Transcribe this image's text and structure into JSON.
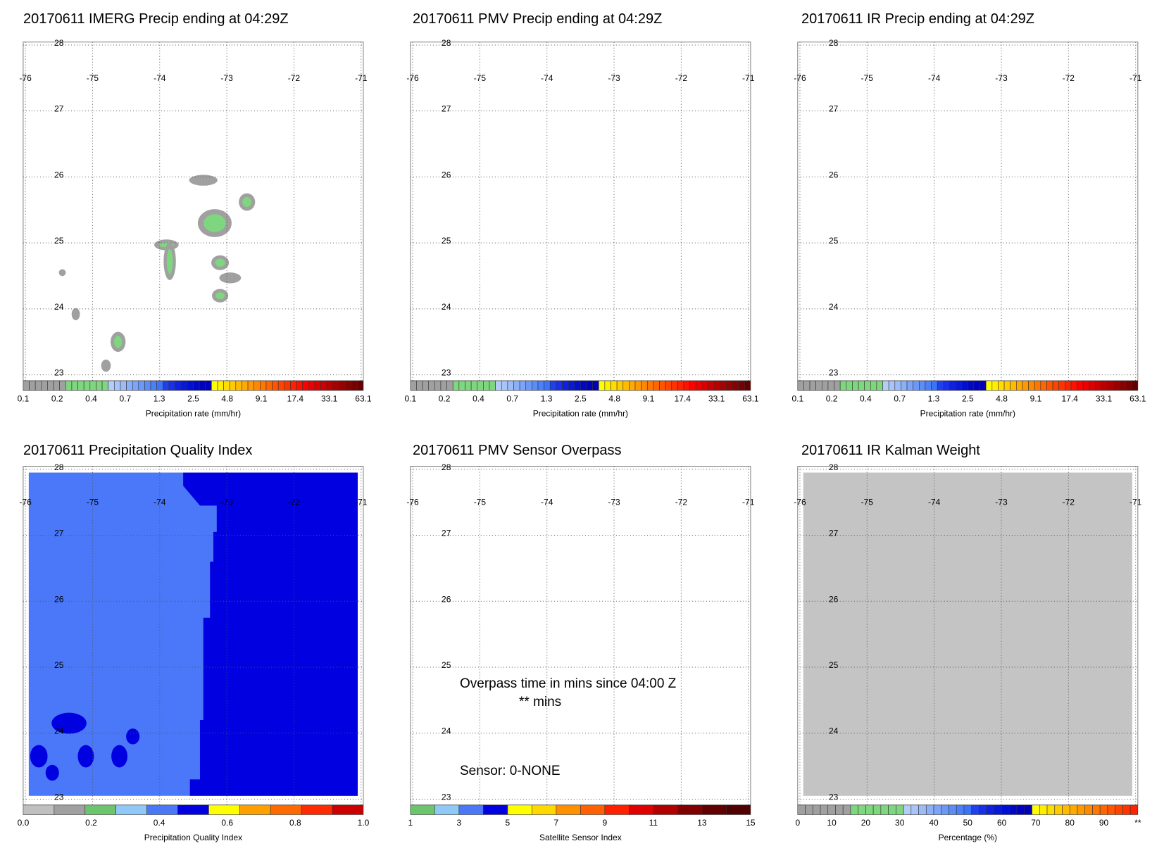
{
  "panels": [
    {
      "id": "imerg",
      "title": "20170611 IMERG Precip ending at 04:29Z",
      "colorbar": {
        "title": "Precipitation rate (mm/hr)",
        "colors": [
          "#a0a0a0",
          "#a0a0a0",
          "#a0a0a0",
          "#a0a0a0",
          "#a0a0a0",
          "#a0a0a0",
          "#a0a0a0",
          "#7ed67e",
          "#7ed67e",
          "#7ed67e",
          "#7ed67e",
          "#7ed67e",
          "#7ed67e",
          "#7ed67e",
          "#b4ccf8",
          "#a8c4f8",
          "#9cbcf8",
          "#8cb0f8",
          "#7ca4f8",
          "#6c98f8",
          "#5c8cf8",
          "#4c80f8",
          "#3c74f8",
          "#2040f0",
          "#1830e8",
          "#1020e0",
          "#0818d8",
          "#0010d0",
          "#0008c8",
          "#0000c0",
          "#0000b8",
          "#ffff00",
          "#ffee00",
          "#ffdd00",
          "#ffcc00",
          "#ffbb00",
          "#ffaa00",
          "#ff9900",
          "#ff8800",
          "#ff7700",
          "#ff6600",
          "#ff5500",
          "#ff4400",
          "#ff3300",
          "#ff2200",
          "#ff1100",
          "#ff0000",
          "#ee0000",
          "#dd0000",
          "#cc0000",
          "#bb0000",
          "#aa0000",
          "#990000",
          "#880000",
          "#770000",
          "#660000"
        ],
        "labels": [
          "0.1",
          "0.2",
          "0.4",
          "0.7",
          "1.3",
          "2.5",
          "4.8",
          "9.1",
          "17.4",
          "33.1",
          "63.1"
        ]
      }
    },
    {
      "id": "pmv",
      "title": "20170611 PMV Precip ending at 04:29Z",
      "colorbar": {
        "title": "Precipitation rate (mm/hr)",
        "labels": [
          "0.1",
          "0.2",
          "0.4",
          "0.7",
          "1.3",
          "2.5",
          "4.8",
          "9.1",
          "17.4",
          "33.1",
          "63.1"
        ]
      }
    },
    {
      "id": "ir",
      "title": "20170611 IR Precip ending at 04:29Z",
      "colorbar": {
        "title": "Precipitation rate (mm/hr)",
        "labels": [
          "0.1",
          "0.2",
          "0.4",
          "0.7",
          "1.3",
          "2.5",
          "4.8",
          "9.1",
          "17.4",
          "33.1",
          "63.1"
        ]
      }
    },
    {
      "id": "pqi",
      "title": "20170611 Precipitation Quality Index",
      "colorbar": {
        "title": "Precipitation Quality Index",
        "colors": [
          "#c0c0c0",
          "#a0a0a0",
          "#6cc46c",
          "#90c8f8",
          "#4a78f8",
          "#0000e0",
          "#ffff00",
          "#ffa000",
          "#ff6a00",
          "#ff2a00",
          "#cc0000",
          "#700000"
        ],
        "labels": [
          "0.0",
          "0.2",
          "0.4",
          "0.6",
          "0.8",
          "1.0"
        ]
      }
    },
    {
      "id": "sensor",
      "title": "20170611 PMV Sensor Overpass",
      "colorbar": {
        "title": "Satellite Sensor Index",
        "colors": [
          "#6cc46c",
          "#90c8f8",
          "#4a78f8",
          "#0000e0",
          "#ffff00",
          "#ffd800",
          "#ff9000",
          "#ff6000",
          "#ff2000",
          "#e00000",
          "#b00000",
          "#800000",
          "#600000",
          "#500000"
        ],
        "labels": [
          "1",
          "3",
          "5",
          "7",
          "9",
          "11",
          "13",
          "15"
        ]
      },
      "notes": {
        "overpass": "Overpass time in mins since 04:00 Z",
        "mins": "** mins",
        "sensor": "Sensor:   0-NONE"
      }
    },
    {
      "id": "kalman",
      "title": "20170611 IR Kalman Weight",
      "colorbar": {
        "title": "Percentage (%)",
        "labels": [
          "0",
          "10",
          "20",
          "30",
          "40",
          "50",
          "60",
          "70",
          "80",
          "90",
          "**"
        ]
      }
    }
  ],
  "axes": {
    "lon_ticks": [
      "-76",
      "-75",
      "-74",
      "-73",
      "-72",
      "-71"
    ],
    "lat_ticks": [
      "28",
      "27",
      "26",
      "25",
      "24",
      "23"
    ],
    "lon_range": [
      -76,
      -71
    ],
    "lat_range": [
      23,
      28
    ],
    "grid": true
  },
  "chart_data": [
    {
      "type": "heatmap",
      "title": "20170611 IMERG Precip ending at 04:29Z",
      "colorbar_label": "Precipitation rate (mm/hr)",
      "ticks": [
        0.1,
        0.2,
        0.4,
        0.7,
        1.3,
        2.5,
        4.8,
        9.1,
        17.4,
        33.1,
        63.1
      ],
      "precip_cells": [
        {
          "lon": -73.4,
          "lat": 25.95,
          "class": "0.1-0.2"
        },
        {
          "lon": -72.7,
          "lat": 25.65,
          "class": "0.2-0.4"
        },
        {
          "lon": -73.2,
          "lat": 25.3,
          "class": "0.2-0.4"
        },
        {
          "lon": -73.9,
          "lat": 24.95,
          "class": "0.2-0.4"
        },
        {
          "lon": -73.1,
          "lat": 24.7,
          "class": "0.2-0.4"
        },
        {
          "lon": -73.0,
          "lat": 24.45,
          "class": "0.1-0.2"
        },
        {
          "lon": -73.1,
          "lat": 24.2,
          "class": "0.2-0.4"
        },
        {
          "lon": -75.4,
          "lat": 24.5,
          "class": "0.1-0.2"
        },
        {
          "lon": -75.2,
          "lat": 23.9,
          "class": "0.1-0.2"
        },
        {
          "lon": -74.6,
          "lat": 23.5,
          "class": "0.2-0.4"
        },
        {
          "lon": -74.8,
          "lat": 23.15,
          "class": "0.1-0.2"
        }
      ]
    },
    {
      "type": "heatmap",
      "title": "20170611 PMV Precip ending at 04:29Z",
      "colorbar_label": "Precipitation rate (mm/hr)",
      "precip_cells": []
    },
    {
      "type": "heatmap",
      "title": "20170611 IR Precip ending at 04:29Z",
      "colorbar_label": "Precipitation rate (mm/hr)",
      "precip_cells": []
    },
    {
      "type": "heatmap",
      "title": "20170611 Precipitation Quality Index",
      "colorbar_label": "Precipitation Quality Index",
      "regions": [
        {
          "lon_range": [
            -76,
            -73.6
          ],
          "value_range": [
            0.4,
            0.5
          ]
        },
        {
          "lon_range": [
            -73.6,
            -71
          ],
          "value_range": [
            0.5,
            0.6
          ]
        }
      ]
    },
    {
      "type": "heatmap",
      "title": "20170611 PMV Sensor Overpass",
      "colorbar_label": "Satellite Sensor Index",
      "sensor": "0-NONE",
      "overpass_mins": "**"
    },
    {
      "type": "heatmap",
      "title": "20170611 IR Kalman Weight",
      "colorbar_label": "Percentage (%)",
      "fill": "missing"
    }
  ]
}
